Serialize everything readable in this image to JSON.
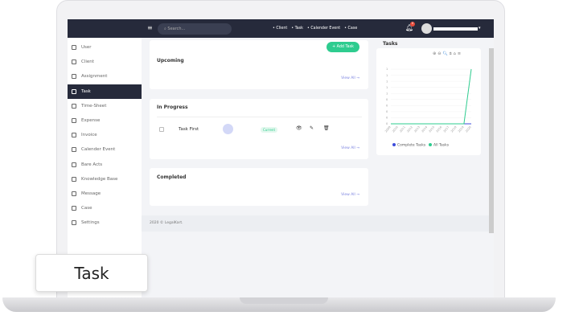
{
  "nav": {
    "search_placeholder": "Search...",
    "links": [
      "• Client",
      "• Task",
      "• Calender Event",
      "• Case"
    ],
    "notification_count": "0"
  },
  "sidebar": {
    "items": [
      {
        "label": "User",
        "icon": "user-icon"
      },
      {
        "label": "Client",
        "icon": "briefcase-icon"
      },
      {
        "label": "Assignment",
        "icon": "assignment-icon"
      },
      {
        "label": "Task",
        "icon": "task-icon",
        "active": true
      },
      {
        "label": "Time-Sheet",
        "icon": "timesheet-icon"
      },
      {
        "label": "Expense",
        "icon": "wallet-icon"
      },
      {
        "label": "Invoice",
        "icon": "invoice-icon"
      },
      {
        "label": "Calender Event",
        "icon": "calendar-icon"
      },
      {
        "label": "Bare Acts",
        "icon": "document-icon"
      },
      {
        "label": "Knowledge Base",
        "icon": "book-icon"
      },
      {
        "label": "Message",
        "icon": "message-icon"
      },
      {
        "label": "Case",
        "icon": "case-icon"
      },
      {
        "label": "Settings",
        "icon": "gear-icon"
      }
    ]
  },
  "main": {
    "add_task": "+ Add Task",
    "upcoming": {
      "title": "Upcoming",
      "view_all": "View All →"
    },
    "in_progress": {
      "title": "In Progress",
      "view_all": "View All →",
      "task": {
        "name": "Task First",
        "status": "Current"
      }
    },
    "completed": {
      "title": "Completed",
      "view_all": "View All →"
    },
    "footer": "2020 © LegalKart."
  },
  "chart_data": {
    "type": "line",
    "title": "Tasks",
    "categories": [
      "2009",
      "2010",
      "2011",
      "2012",
      "2013",
      "2014",
      "2015",
      "2016",
      "2017",
      "2018",
      "2019",
      "2020"
    ],
    "y_tick_labels": [
      "1",
      "1",
      "1",
      "1",
      "1",
      "0",
      "0",
      "0",
      "0",
      "0"
    ],
    "series": [
      {
        "name": "Complete Tasks",
        "color": "#3d4ddb",
        "values": [
          0,
          0,
          0,
          0,
          0,
          0,
          0,
          0,
          0,
          0,
          0,
          0
        ]
      },
      {
        "name": "All Tasks",
        "color": "#2ecc8f",
        "values": [
          0,
          0,
          0,
          0,
          0,
          0,
          0,
          0,
          0,
          0,
          0,
          1
        ]
      }
    ],
    "ylim": [
      0,
      1
    ],
    "grid": true,
    "legend": "bottom"
  },
  "caption": "Task"
}
